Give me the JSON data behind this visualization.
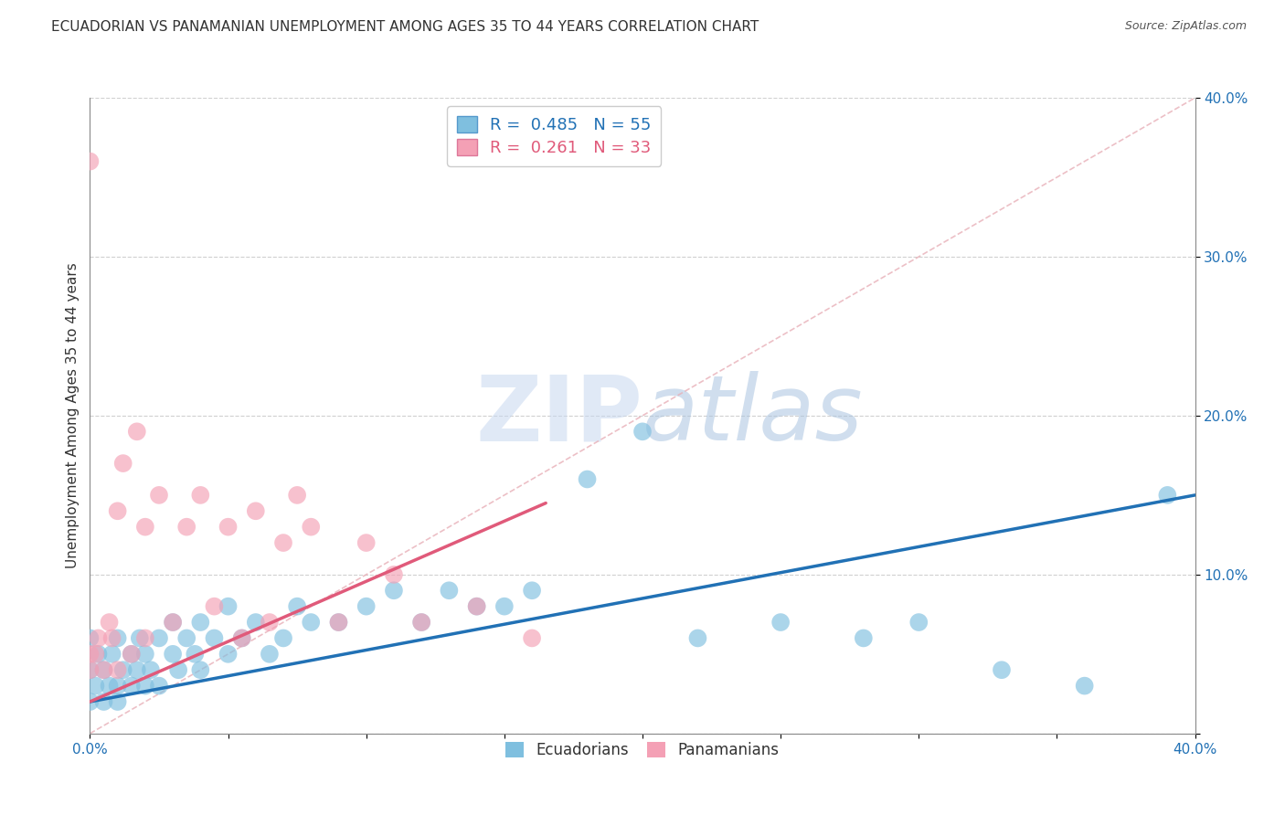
{
  "title": "ECUADORIAN VS PANAMANIAN UNEMPLOYMENT AMONG AGES 35 TO 44 YEARS CORRELATION CHART",
  "source": "Source: ZipAtlas.com",
  "ylabel": "Unemployment Among Ages 35 to 44 years",
  "xlim": [
    0.0,
    0.4
  ],
  "ylim": [
    0.0,
    0.4
  ],
  "legend_entries": [
    {
      "label": "R =  0.485   N = 55",
      "color": "#6baed6"
    },
    {
      "label": "R =  0.261   N = 33",
      "color": "#f4a0b5"
    }
  ],
  "ecuadorians_x": [
    0.0,
    0.0,
    0.0,
    0.002,
    0.003,
    0.005,
    0.005,
    0.007,
    0.008,
    0.01,
    0.01,
    0.01,
    0.012,
    0.015,
    0.015,
    0.017,
    0.018,
    0.02,
    0.02,
    0.022,
    0.025,
    0.025,
    0.03,
    0.03,
    0.032,
    0.035,
    0.038,
    0.04,
    0.04,
    0.045,
    0.05,
    0.05,
    0.055,
    0.06,
    0.065,
    0.07,
    0.075,
    0.08,
    0.09,
    0.1,
    0.11,
    0.12,
    0.13,
    0.14,
    0.15,
    0.16,
    0.18,
    0.2,
    0.22,
    0.25,
    0.28,
    0.3,
    0.33,
    0.36,
    0.39
  ],
  "ecuadorians_y": [
    0.02,
    0.04,
    0.06,
    0.03,
    0.05,
    0.02,
    0.04,
    0.03,
    0.05,
    0.02,
    0.03,
    0.06,
    0.04,
    0.03,
    0.05,
    0.04,
    0.06,
    0.03,
    0.05,
    0.04,
    0.03,
    0.06,
    0.05,
    0.07,
    0.04,
    0.06,
    0.05,
    0.04,
    0.07,
    0.06,
    0.05,
    0.08,
    0.06,
    0.07,
    0.05,
    0.06,
    0.08,
    0.07,
    0.07,
    0.08,
    0.09,
    0.07,
    0.09,
    0.08,
    0.08,
    0.09,
    0.16,
    0.19,
    0.06,
    0.07,
    0.06,
    0.07,
    0.04,
    0.03,
    0.15
  ],
  "panamanians_x": [
    0.0,
    0.0,
    0.0,
    0.002,
    0.003,
    0.005,
    0.007,
    0.008,
    0.01,
    0.01,
    0.012,
    0.015,
    0.017,
    0.02,
    0.02,
    0.025,
    0.03,
    0.035,
    0.04,
    0.045,
    0.05,
    0.055,
    0.06,
    0.065,
    0.07,
    0.075,
    0.08,
    0.09,
    0.1,
    0.11,
    0.12,
    0.14,
    0.16
  ],
  "panamanians_y": [
    0.04,
    0.05,
    0.36,
    0.05,
    0.06,
    0.04,
    0.07,
    0.06,
    0.04,
    0.14,
    0.17,
    0.05,
    0.19,
    0.13,
    0.06,
    0.15,
    0.07,
    0.13,
    0.15,
    0.08,
    0.13,
    0.06,
    0.14,
    0.07,
    0.12,
    0.15,
    0.13,
    0.07,
    0.12,
    0.1,
    0.07,
    0.08,
    0.06
  ],
  "ecu_line_x": [
    0.0,
    0.4
  ],
  "ecu_line_y": [
    0.02,
    0.15
  ],
  "pan_line_x": [
    0.0,
    0.165
  ],
  "pan_line_y": [
    0.02,
    0.145
  ],
  "diag_line_x": [
    0.0,
    0.4
  ],
  "diag_line_y": [
    0.0,
    0.4
  ],
  "ecu_color": "#7fbfdf",
  "pan_color": "#f4a0b5",
  "ecu_line_color": "#2171b5",
  "pan_line_color": "#e05a7a",
  "diag_line_color": "#e8b0b8",
  "watermark_zip_color": "#c8d8f0",
  "watermark_atlas_color": "#aac4e0",
  "background_color": "#ffffff",
  "grid_color": "#d0d0d0",
  "title_fontsize": 11,
  "axis_label_fontsize": 11,
  "tick_fontsize": 11
}
